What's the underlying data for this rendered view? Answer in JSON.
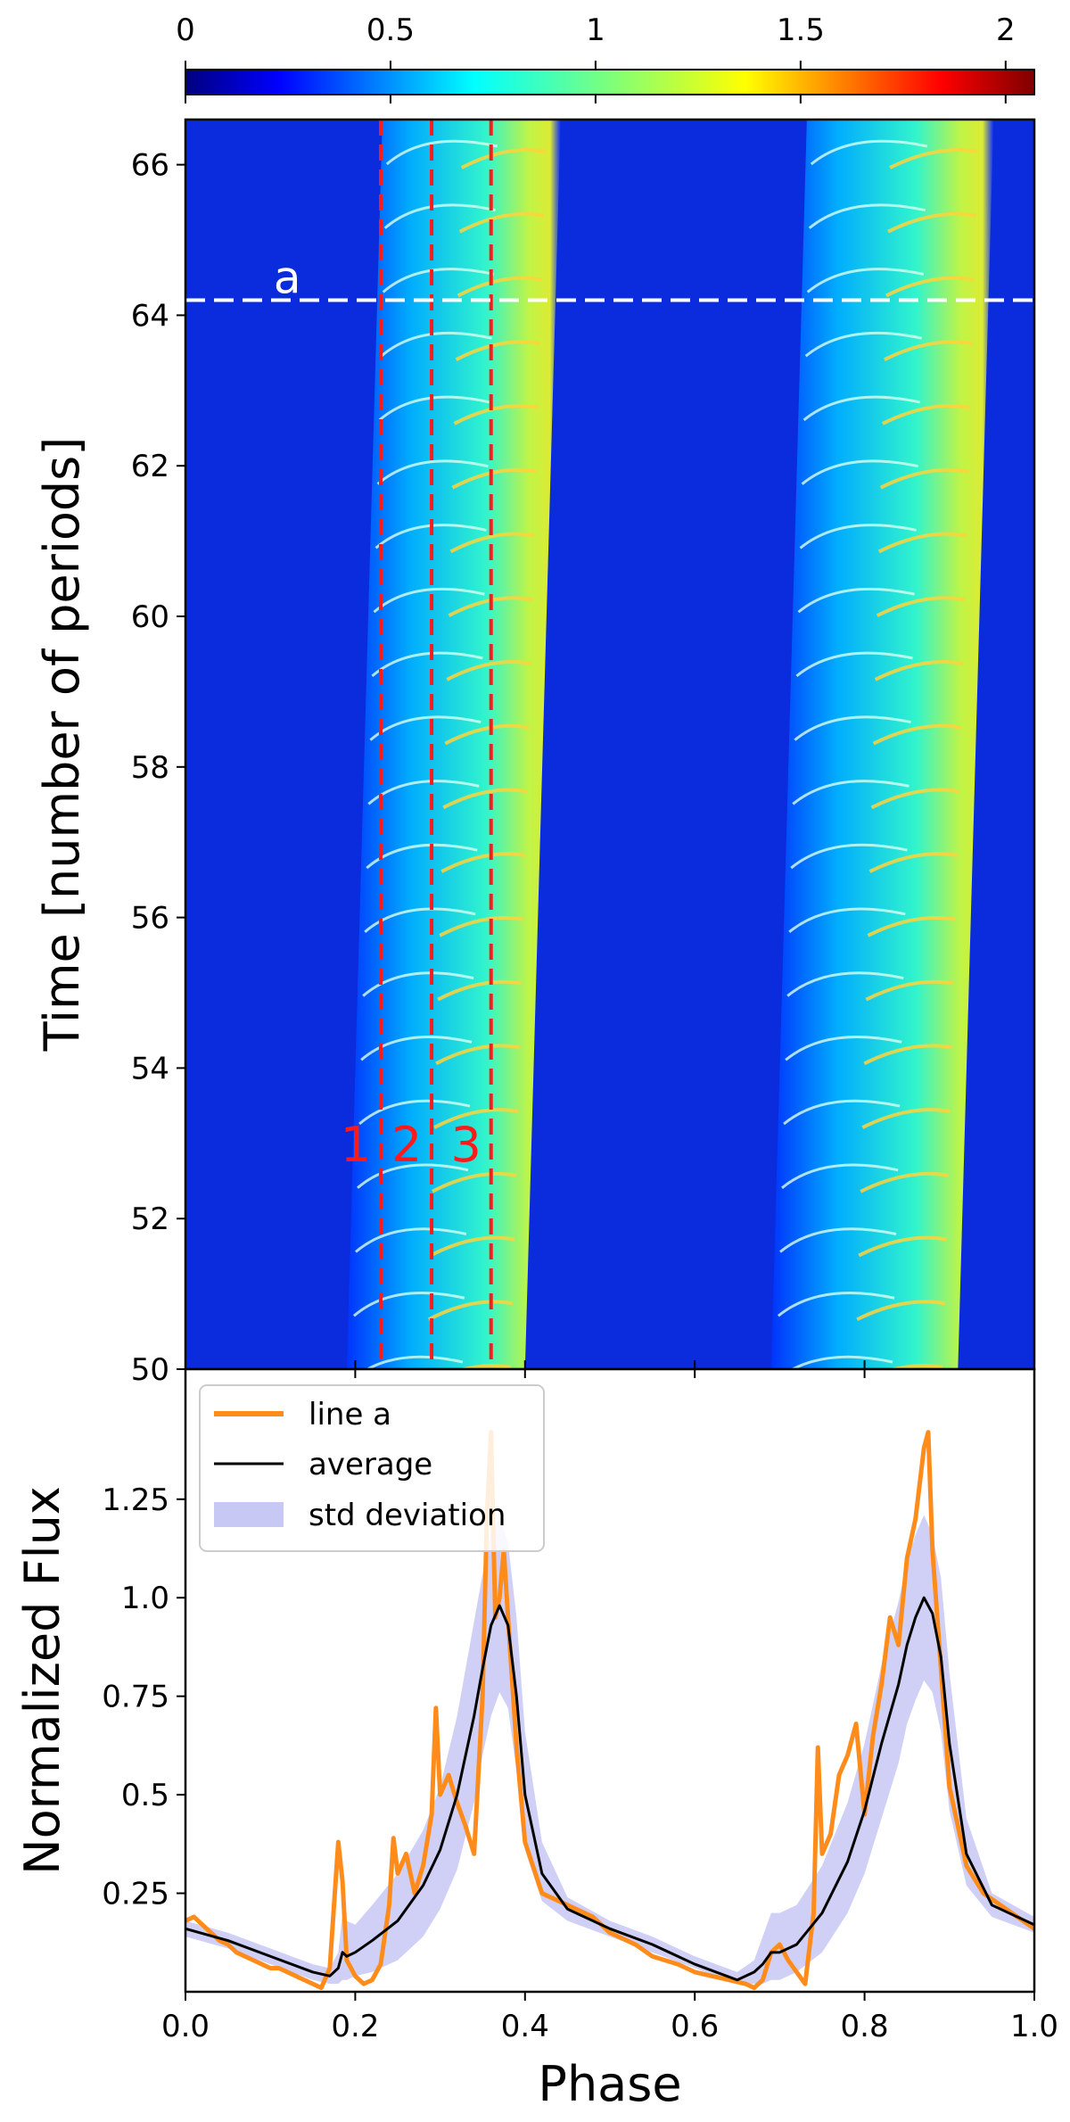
{
  "chart_data": [
    {
      "type": "heatmap",
      "xlabel": "",
      "ylabel": "Time [number of periods]",
      "xlim": [
        0.0,
        1.0
      ],
      "ylim": [
        50,
        66.6
      ],
      "yticks": [
        50,
        52,
        54,
        56,
        58,
        60,
        62,
        64,
        66
      ],
      "ytick_labels": [
        "50",
        "52",
        "54",
        "56",
        "58",
        "60",
        "62",
        "64",
        "66"
      ],
      "colormap": "jet",
      "colorbar": {
        "position": "top",
        "range": [
          0,
          2.07
        ],
        "ticks": [
          0,
          0.5,
          1,
          1.5,
          2
        ],
        "tick_labels": [
          "0",
          "0.5",
          "1",
          "1.5",
          "2"
        ]
      },
      "colors": {
        "line_a_marker": "#ffffff",
        "phase_markers": "#ff1a1a"
      },
      "line_a": {
        "label": "a",
        "time": 64.2
      },
      "phase_markers": [
        {
          "label": "1",
          "phase": 0.23
        },
        {
          "label": "2",
          "phase": 0.29
        },
        {
          "label": "3",
          "phase": 0.36
        }
      ],
      "bright_bands": [
        {
          "phase_start": 0.19,
          "phase_end": 0.4
        },
        {
          "phase_start": 0.69,
          "phase_end": 0.91
        }
      ]
    },
    {
      "type": "line",
      "xlabel": "Phase",
      "ylabel": "Normalized Flux",
      "xlim": [
        0.0,
        1.0
      ],
      "ylim": [
        0.0,
        1.58
      ],
      "xticks": [
        0.0,
        0.2,
        0.4,
        0.6,
        0.8,
        1.0
      ],
      "xtick_labels": [
        "0.0",
        "0.2",
        "0.4",
        "0.6",
        "0.8",
        "1.0"
      ],
      "yticks": [
        0.25,
        0.5,
        0.75,
        1.0,
        1.25
      ],
      "ytick_labels": [
        "0.25",
        "0.5",
        "0.75",
        "1.0",
        "1.25"
      ],
      "legend": {
        "position": "top-left",
        "entries": [
          "line a",
          "average",
          "std deviation"
        ]
      },
      "series": [
        {
          "name": "line a",
          "color": "#ff8c1a",
          "x": [
            0.0,
            0.01,
            0.02,
            0.03,
            0.04,
            0.05,
            0.06,
            0.07,
            0.08,
            0.09,
            0.1,
            0.11,
            0.12,
            0.13,
            0.14,
            0.15,
            0.16,
            0.17,
            0.18,
            0.185,
            0.19,
            0.2,
            0.21,
            0.22,
            0.23,
            0.24,
            0.245,
            0.25,
            0.26,
            0.27,
            0.28,
            0.29,
            0.295,
            0.3,
            0.31,
            0.32,
            0.33,
            0.34,
            0.35,
            0.355,
            0.36,
            0.365,
            0.37,
            0.375,
            0.38,
            0.39,
            0.4,
            0.42,
            0.45,
            0.48,
            0.5,
            0.53,
            0.55,
            0.58,
            0.6,
            0.62,
            0.64,
            0.66,
            0.67,
            0.68,
            0.69,
            0.7,
            0.71,
            0.72,
            0.73,
            0.74,
            0.745,
            0.75,
            0.76,
            0.77,
            0.78,
            0.79,
            0.8,
            0.81,
            0.82,
            0.83,
            0.84,
            0.85,
            0.86,
            0.87,
            0.875,
            0.88,
            0.89,
            0.9,
            0.92,
            0.94,
            0.96,
            0.98,
            1.0
          ],
          "y": [
            0.18,
            0.19,
            0.17,
            0.15,
            0.13,
            0.12,
            0.1,
            0.09,
            0.08,
            0.07,
            0.06,
            0.06,
            0.05,
            0.04,
            0.03,
            0.02,
            0.01,
            0.06,
            0.38,
            0.28,
            0.08,
            0.04,
            0.02,
            0.03,
            0.07,
            0.22,
            0.39,
            0.3,
            0.35,
            0.25,
            0.32,
            0.45,
            0.72,
            0.5,
            0.55,
            0.48,
            0.42,
            0.35,
            0.75,
            1.2,
            1.42,
            0.95,
            1.0,
            1.12,
            0.95,
            0.62,
            0.38,
            0.25,
            0.22,
            0.19,
            0.15,
            0.12,
            0.09,
            0.07,
            0.05,
            0.04,
            0.03,
            0.02,
            0.01,
            0.03,
            0.1,
            0.12,
            0.08,
            0.05,
            0.02,
            0.2,
            0.62,
            0.35,
            0.4,
            0.55,
            0.6,
            0.68,
            0.45,
            0.65,
            0.78,
            0.95,
            0.88,
            1.1,
            1.2,
            1.38,
            1.42,
            1.12,
            0.82,
            0.52,
            0.32,
            0.25,
            0.22,
            0.19,
            0.16
          ]
        },
        {
          "name": "average",
          "color": "#000000",
          "x": [
            0.0,
            0.05,
            0.1,
            0.15,
            0.17,
            0.18,
            0.185,
            0.19,
            0.2,
            0.22,
            0.25,
            0.28,
            0.3,
            0.32,
            0.34,
            0.35,
            0.36,
            0.37,
            0.38,
            0.39,
            0.4,
            0.42,
            0.45,
            0.5,
            0.55,
            0.6,
            0.65,
            0.67,
            0.68,
            0.69,
            0.7,
            0.72,
            0.75,
            0.78,
            0.8,
            0.82,
            0.84,
            0.85,
            0.86,
            0.87,
            0.88,
            0.89,
            0.9,
            0.92,
            0.95,
            1.0
          ],
          "y": [
            0.16,
            0.13,
            0.09,
            0.05,
            0.04,
            0.06,
            0.1,
            0.09,
            0.1,
            0.13,
            0.18,
            0.27,
            0.36,
            0.5,
            0.7,
            0.82,
            0.93,
            0.98,
            0.93,
            0.75,
            0.5,
            0.3,
            0.21,
            0.16,
            0.12,
            0.07,
            0.03,
            0.05,
            0.07,
            0.1,
            0.1,
            0.12,
            0.2,
            0.33,
            0.46,
            0.63,
            0.78,
            0.88,
            0.95,
            1.0,
            0.96,
            0.85,
            0.63,
            0.35,
            0.22,
            0.17
          ]
        },
        {
          "name": "std deviation",
          "color": "#c8c8f5",
          "x": [
            0.0,
            0.05,
            0.1,
            0.15,
            0.17,
            0.18,
            0.185,
            0.19,
            0.2,
            0.22,
            0.25,
            0.28,
            0.3,
            0.32,
            0.34,
            0.35,
            0.36,
            0.37,
            0.38,
            0.39,
            0.4,
            0.42,
            0.45,
            0.5,
            0.55,
            0.6,
            0.65,
            0.67,
            0.68,
            0.69,
            0.7,
            0.72,
            0.75,
            0.78,
            0.8,
            0.82,
            0.84,
            0.85,
            0.86,
            0.87,
            0.88,
            0.89,
            0.9,
            0.92,
            0.95,
            1.0
          ],
          "lower": [
            0.14,
            0.11,
            0.07,
            0.03,
            0.02,
            0.02,
            0.03,
            0.03,
            0.04,
            0.05,
            0.08,
            0.14,
            0.21,
            0.31,
            0.48,
            0.6,
            0.7,
            0.76,
            0.72,
            0.56,
            0.36,
            0.23,
            0.18,
            0.14,
            0.1,
            0.06,
            0.02,
            0.02,
            0.02,
            0.03,
            0.03,
            0.05,
            0.1,
            0.2,
            0.3,
            0.44,
            0.58,
            0.68,
            0.74,
            0.79,
            0.76,
            0.66,
            0.46,
            0.27,
            0.19,
            0.15
          ],
          "upper": [
            0.18,
            0.15,
            0.11,
            0.07,
            0.06,
            0.1,
            0.2,
            0.18,
            0.17,
            0.22,
            0.3,
            0.41,
            0.52,
            0.7,
            0.94,
            1.06,
            1.17,
            1.2,
            1.14,
            0.95,
            0.66,
            0.38,
            0.24,
            0.18,
            0.14,
            0.09,
            0.05,
            0.08,
            0.14,
            0.2,
            0.2,
            0.22,
            0.32,
            0.48,
            0.63,
            0.83,
            0.99,
            1.09,
            1.16,
            1.21,
            1.16,
            1.05,
            0.81,
            0.44,
            0.25,
            0.19
          ]
        }
      ]
    }
  ]
}
